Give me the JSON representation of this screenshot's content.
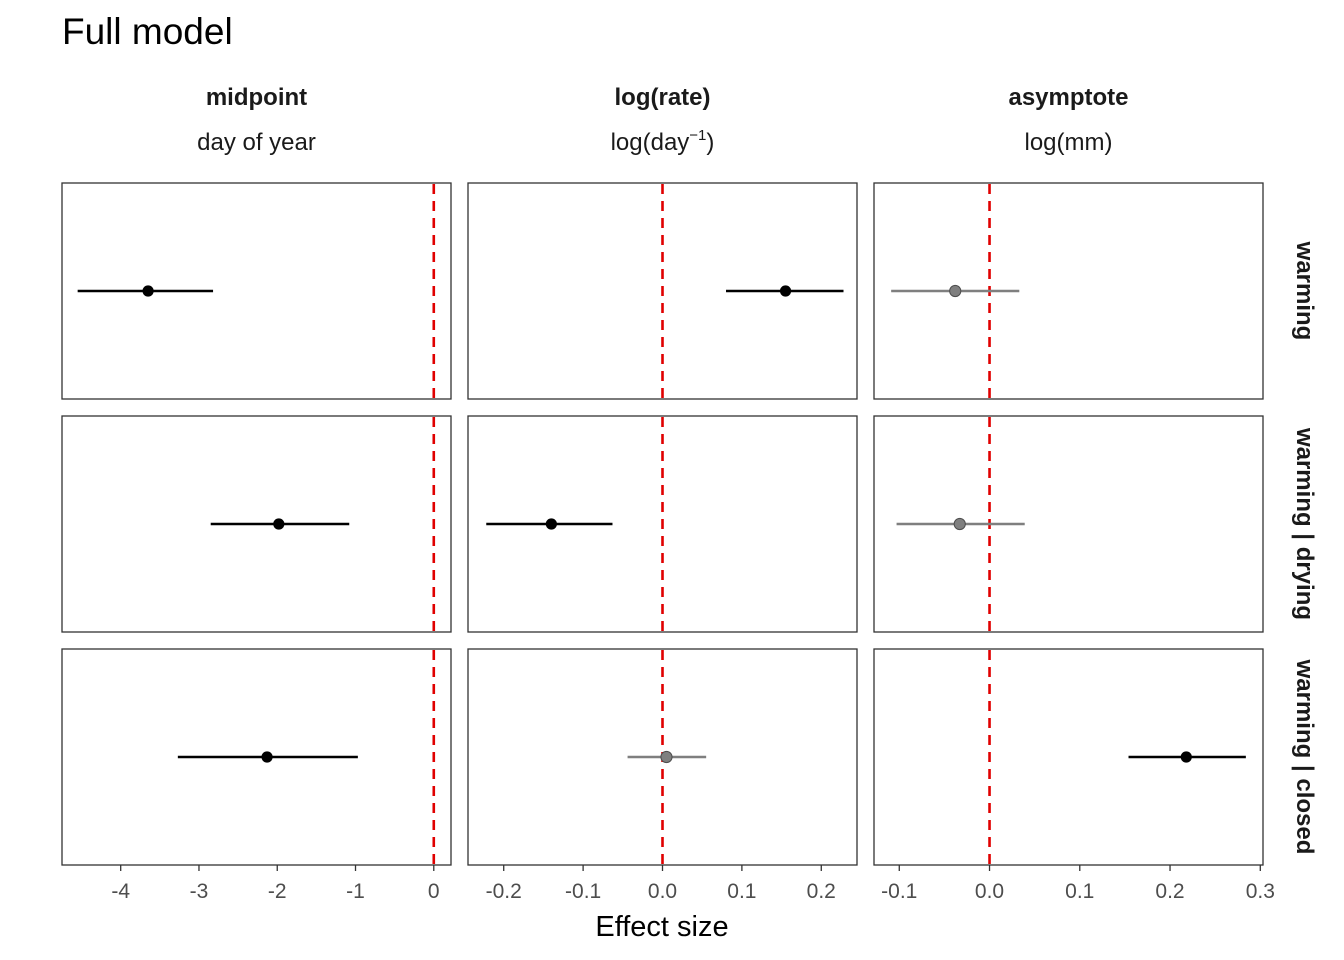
{
  "title": "Full model",
  "chart_data": {
    "type": "scatter",
    "style": "forest-plot (point estimate with interval), faceted 3 rows x 3 columns",
    "title": "Full model",
    "xlabel": "Effect size",
    "reference_line": {
      "x": 0,
      "color": "#e00000",
      "style": "dashed"
    },
    "grid": false,
    "legend": "none",
    "colors": {
      "significant": "#000000",
      "non_significant": "#7f7f7f",
      "reference": "#e00000"
    },
    "columns": [
      {
        "name": "midpoint",
        "unit": "day of year",
        "xlim": [
          -4.75,
          0.22
        ],
        "ticks": [
          {
            "value": -4,
            "label": "-4"
          },
          {
            "value": -3,
            "label": "-3"
          },
          {
            "value": -2,
            "label": "-2"
          },
          {
            "value": -1,
            "label": "-1"
          },
          {
            "value": 0,
            "label": "0"
          }
        ]
      },
      {
        "name": "log(rate)",
        "unit_base": "log(day",
        "unit_sup": "−1",
        "unit_close": ")",
        "xlim": [
          -0.245,
          0.245
        ],
        "ticks": [
          {
            "value": -0.2,
            "label": "-0.2"
          },
          {
            "value": -0.1,
            "label": "-0.1"
          },
          {
            "value": 0,
            "label": "0.0"
          },
          {
            "value": 0.1,
            "label": "0.1"
          },
          {
            "value": 0.2,
            "label": "0.2"
          }
        ]
      },
      {
        "name": "asymptote",
        "unit": "log(mm)",
        "xlim": [
          -0.128,
          0.303
        ],
        "ticks": [
          {
            "value": -0.1,
            "label": "-0.1"
          },
          {
            "value": 0,
            "label": "0.0"
          },
          {
            "value": 0.1,
            "label": "0.1"
          },
          {
            "value": 0.2,
            "label": "0.2"
          },
          {
            "value": 0.3,
            "label": "0.3"
          }
        ]
      }
    ],
    "rows": [
      "warming",
      "warming | drying",
      "warming | closed"
    ],
    "estimates": [
      [
        {
          "estimate": -3.65,
          "lower": -4.55,
          "upper": -2.82,
          "significant": true
        },
        {
          "estimate": 0.155,
          "lower": 0.08,
          "upper": 0.228,
          "significant": true
        },
        {
          "estimate": -0.038,
          "lower": -0.109,
          "upper": 0.033,
          "significant": false
        }
      ],
      [
        {
          "estimate": -1.98,
          "lower": -2.85,
          "upper": -1.08,
          "significant": true
        },
        {
          "estimate": -0.14,
          "lower": -0.222,
          "upper": -0.063,
          "significant": true
        },
        {
          "estimate": -0.033,
          "lower": -0.103,
          "upper": 0.039,
          "significant": false
        }
      ],
      [
        {
          "estimate": -2.13,
          "lower": -3.27,
          "upper": -0.97,
          "significant": true
        },
        {
          "estimate": 0.005,
          "lower": -0.044,
          "upper": 0.055,
          "significant": false
        },
        {
          "estimate": 0.218,
          "lower": 0.154,
          "upper": 0.284,
          "significant": true
        }
      ]
    ]
  }
}
